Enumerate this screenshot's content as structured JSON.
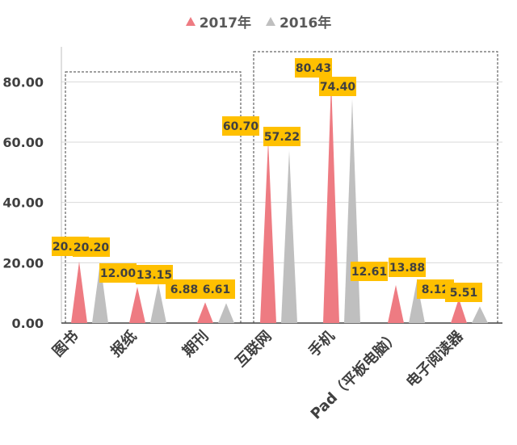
{
  "chart_data": {
    "type": "bar",
    "mark_shape": "triangle",
    "categories": [
      "图书",
      "报纸",
      "期刊",
      "互联网",
      "手机",
      "Pad（平板电脑）",
      "电子阅读器"
    ],
    "series": [
      {
        "name": "2017年",
        "values": [
          20.38,
          12.0,
          6.88,
          60.7,
          80.43,
          12.61,
          8.12
        ],
        "color": "#EE7B82"
      },
      {
        "name": "2016年",
        "values": [
          20.2,
          13.15,
          6.61,
          57.22,
          74.4,
          13.88,
          5.51
        ],
        "color": "#BFBFBF"
      }
    ],
    "data_labels": {
      "2017年": [
        "20.38",
        "12.00",
        "6.88",
        "60.70",
        "80.43",
        "12.61",
        "8.12"
      ],
      "2016年": [
        "20.20",
        "13.15",
        "6.61",
        "57.22",
        "74.40",
        "13.88",
        "5.51"
      ]
    },
    "ylim": [
      0,
      90
    ],
    "yticks": [
      0,
      20,
      40,
      60,
      80
    ],
    "ytick_labels": [
      "0.00",
      "20.00",
      "40.00",
      "60.00",
      "80.00"
    ],
    "grid": true,
    "legend_position": "top-center",
    "label_box_color": "#FFC000",
    "groups": [
      {
        "categories": [
          "图书",
          "报纸",
          "期刊"
        ],
        "style": "dashed-box"
      },
      {
        "categories": [
          "互联网",
          "手机",
          "Pad（平板电脑）",
          "电子阅读器"
        ],
        "style": "dashed-box"
      }
    ]
  }
}
